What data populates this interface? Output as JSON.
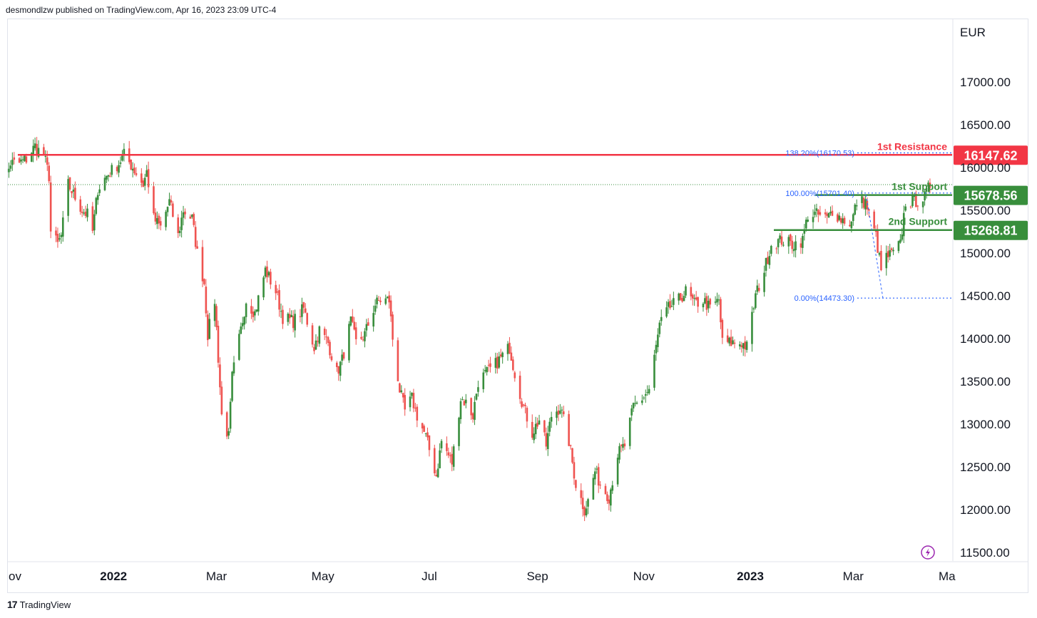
{
  "header": {
    "text": "desmondlzw published on TradingView.com, Apr 16, 2023 23:09 UTC-4"
  },
  "footer": {
    "logo": "17",
    "brand": "TradingView"
  },
  "chart_data": {
    "type": "candlestick",
    "currency_label": "EUR",
    "grid": false,
    "ylim": [
      11350,
      17700
    ],
    "y_ticks": [
      "17000.00",
      "16500.00",
      "16000.00",
      "15500.00",
      "15000.00",
      "14500.00",
      "14000.00",
      "13500.00",
      "13000.00",
      "12500.00",
      "12000.00",
      "11500.00"
    ],
    "x_ticks": [
      {
        "label": "ov",
        "bold": false,
        "anchor": "2021-11-01"
      },
      {
        "label": "2022",
        "bold": true,
        "anchor": "2022-01-01"
      },
      {
        "label": "Mar",
        "bold": false,
        "anchor": "2022-03-01"
      },
      {
        "label": "May",
        "bold": false,
        "anchor": "2022-05-01"
      },
      {
        "label": "Jul",
        "bold": false,
        "anchor": "2022-07-01"
      },
      {
        "label": "Sep",
        "bold": false,
        "anchor": "2022-09-01"
      },
      {
        "label": "Nov",
        "bold": false,
        "anchor": "2022-11-01"
      },
      {
        "label": "2023",
        "bold": true,
        "anchor": "2023-01-01"
      },
      {
        "label": "Mar",
        "bold": false,
        "anchor": "2023-03-01"
      },
      {
        "label": "Ma",
        "bold": false,
        "anchor": "2023-05-01"
      }
    ],
    "levels": [
      {
        "name": "1st Resistance",
        "value": 16147.62,
        "badge": "16147.62",
        "color": "#f23645"
      },
      {
        "name": "1st Support",
        "value": 15678.56,
        "badge": "15678.56",
        "color": "#388e3c"
      },
      {
        "name": "2nd Support",
        "value": 15268.81,
        "badge": "15268.81",
        "color": "#388e3c"
      }
    ],
    "fib_levels": [
      {
        "label": "138.20%(16170.53)",
        "value": 16170.53
      },
      {
        "label": "100.00%(15701.40)",
        "value": 15701.4
      },
      {
        "label": "0.00%(14473.30)",
        "value": 14473.3
      }
    ],
    "last_close_dotted": 15800,
    "colors": {
      "up": "#388e3c",
      "down": "#ef5350",
      "resistance": "#f23645",
      "support": "#388e3c",
      "fib": "#2962ff"
    },
    "close_path": [
      [
        "2021-10-26",
        15500
      ],
      [
        "2021-10-29",
        15700
      ],
      [
        "2021-11-03",
        16050
      ],
      [
        "2021-11-08",
        16050
      ],
      [
        "2021-11-12",
        16100
      ],
      [
        "2021-11-17",
        16250
      ],
      [
        "2021-11-19",
        16200
      ],
      [
        "2021-11-22",
        16150
      ],
      [
        "2021-11-25",
        15900
      ],
      [
        "2021-11-26",
        15250
      ],
      [
        "2021-11-30",
        15100
      ],
      [
        "2021-12-02",
        15200
      ],
      [
        "2021-12-06",
        15800
      ],
      [
        "2021-12-10",
        15650
      ],
      [
        "2021-12-14",
        15500
      ],
      [
        "2021-12-17",
        15450
      ],
      [
        "2021-12-20",
        15250
      ],
      [
        "2021-12-23",
        15750
      ],
      [
        "2021-12-28",
        15900
      ],
      [
        "2022-01-04",
        16050
      ],
      [
        "2022-01-07",
        16150
      ],
      [
        "2022-01-12",
        16000
      ],
      [
        "2022-01-18",
        15800
      ],
      [
        "2022-01-20",
        15950
      ],
      [
        "2022-01-24",
        15400
      ],
      [
        "2022-01-28",
        15300
      ],
      [
        "2022-02-02",
        15600
      ],
      [
        "2022-02-07",
        15200
      ],
      [
        "2022-02-10",
        15500
      ],
      [
        "2022-02-15",
        15400
      ],
      [
        "2022-02-18",
        15000
      ],
      [
        "2022-02-22",
        14650
      ],
      [
        "2022-02-24",
        14050
      ],
      [
        "2022-02-28",
        14450
      ],
      [
        "2022-03-04",
        13100
      ],
      [
        "2022-03-08",
        12850
      ],
      [
        "2022-03-10",
        13550
      ],
      [
        "2022-03-15",
        14100
      ],
      [
        "2022-03-18",
        14450
      ],
      [
        "2022-03-23",
        14300
      ],
      [
        "2022-03-29",
        14800
      ],
      [
        "2022-04-04",
        14550
      ],
      [
        "2022-04-08",
        14250
      ],
      [
        "2022-04-14",
        14200
      ],
      [
        "2022-04-20",
        14350
      ],
      [
        "2022-04-26",
        13900
      ],
      [
        "2022-04-29",
        14100
      ],
      [
        "2022-05-04",
        13950
      ],
      [
        "2022-05-09",
        13600
      ],
      [
        "2022-05-12",
        13750
      ],
      [
        "2022-05-17",
        14200
      ],
      [
        "2022-05-20",
        13950
      ],
      [
        "2022-05-25",
        14050
      ],
      [
        "2022-05-31",
        14400
      ],
      [
        "2022-06-03",
        14450
      ],
      [
        "2022-06-08",
        14450
      ],
      [
        "2022-06-10",
        14000
      ],
      [
        "2022-06-14",
        13400
      ],
      [
        "2022-06-17",
        13150
      ],
      [
        "2022-06-21",
        13300
      ],
      [
        "2022-06-24",
        13100
      ],
      [
        "2022-06-29",
        12850
      ],
      [
        "2022-07-05",
        12400
      ],
      [
        "2022-07-08",
        12800
      ],
      [
        "2022-07-14",
        12550
      ],
      [
        "2022-07-19",
        13300
      ],
      [
        "2022-07-22",
        13250
      ],
      [
        "2022-07-26",
        13100
      ],
      [
        "2022-07-29",
        13500
      ],
      [
        "2022-08-03",
        13600
      ],
      [
        "2022-08-08",
        13700
      ],
      [
        "2022-08-12",
        13800
      ],
      [
        "2022-08-16",
        13900
      ],
      [
        "2022-08-19",
        13600
      ],
      [
        "2022-08-24",
        13200
      ],
      [
        "2022-08-29",
        12900
      ],
      [
        "2022-09-02",
        13050
      ],
      [
        "2022-09-06",
        12750
      ],
      [
        "2022-09-09",
        13100
      ],
      [
        "2022-09-14",
        13200
      ],
      [
        "2022-09-19",
        12800
      ],
      [
        "2022-09-23",
        12300
      ],
      [
        "2022-09-28",
        12000
      ],
      [
        "2022-09-30",
        12100
      ],
      [
        "2022-10-04",
        12450
      ],
      [
        "2022-10-07",
        12300
      ],
      [
        "2022-10-12",
        12150
      ],
      [
        "2022-10-17",
        12650
      ],
      [
        "2022-10-21",
        12750
      ],
      [
        "2022-10-26",
        13200
      ],
      [
        "2022-10-31",
        13300
      ],
      [
        "2022-11-04",
        13400
      ],
      [
        "2022-11-10",
        14150
      ],
      [
        "2022-11-15",
        14350
      ],
      [
        "2022-11-21",
        14450
      ],
      [
        "2022-11-25",
        14550
      ],
      [
        "2022-11-30",
        14400
      ],
      [
        "2022-12-05",
        14450
      ],
      [
        "2022-12-09",
        14350
      ],
      [
        "2022-12-14",
        14450
      ],
      [
        "2022-12-16",
        13950
      ],
      [
        "2022-12-21",
        13950
      ],
      [
        "2022-12-27",
        13950
      ],
      [
        "2022-12-30",
        13900
      ],
      [
        "2023-01-04",
        14500
      ],
      [
        "2023-01-09",
        14800
      ],
      [
        "2023-01-13",
        15100
      ],
      [
        "2023-01-19",
        15150
      ],
      [
        "2023-01-25",
        15100
      ],
      [
        "2023-01-31",
        15150
      ],
      [
        "2023-02-03",
        15450
      ],
      [
        "2023-02-08",
        15450
      ],
      [
        "2023-02-14",
        15400
      ],
      [
        "2023-02-17",
        15500
      ],
      [
        "2023-02-22",
        15400
      ],
      [
        "2023-02-28",
        15350
      ],
      [
        "2023-03-03",
        15600
      ],
      [
        "2023-03-08",
        15600
      ],
      [
        "2023-03-10",
        15450
      ],
      [
        "2023-03-14",
        15200
      ],
      [
        "2023-03-17",
        14800
      ],
      [
        "2023-03-20",
        14950
      ],
      [
        "2023-03-24",
        15000
      ],
      [
        "2023-03-28",
        15100
      ],
      [
        "2023-03-31",
        15600
      ],
      [
        "2023-04-05",
        15600
      ],
      [
        "2023-04-11",
        15650
      ],
      [
        "2023-04-14",
        15800
      ]
    ]
  }
}
